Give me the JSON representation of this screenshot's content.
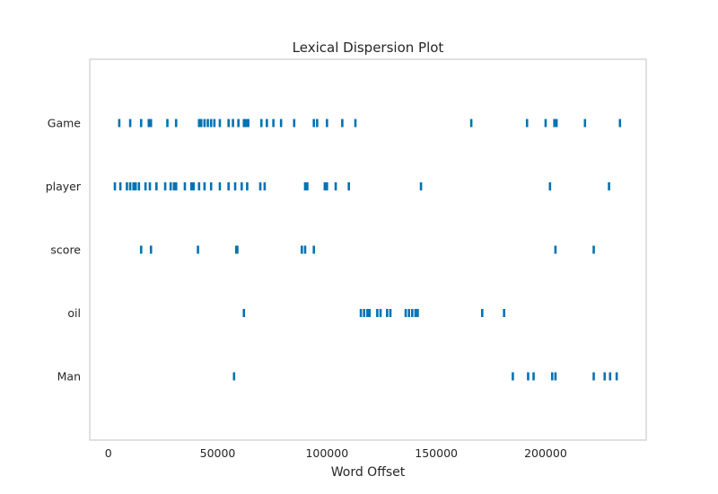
{
  "chart_data": {
    "type": "scatter",
    "title": "Lexical Dispersion Plot",
    "xlabel": "Word Offset",
    "ylabel": "",
    "xlim": [
      -8500,
      246000
    ],
    "xticks": [
      0,
      50000,
      100000,
      150000,
      200000
    ],
    "xtick_labels": [
      "0",
      "50000",
      "100000",
      "150000",
      "200000"
    ],
    "grid": false,
    "marker": "|",
    "color": "#0072b2",
    "categories": [
      "Game",
      "player",
      "score",
      "oil",
      "Man"
    ],
    "series": [
      {
        "name": "Game",
        "x": [
          5000,
          10000,
          15000,
          18500,
          19500,
          27000,
          31000,
          41500,
          42500,
          44000,
          45500,
          47000,
          48500,
          51000,
          55000,
          57000,
          59500,
          62000,
          63000,
          64000,
          70000,
          72500,
          75500,
          79000,
          85000,
          94000,
          95500,
          100000,
          107000,
          113000,
          166000,
          191500,
          200000,
          204000,
          205000,
          218000,
          234000
        ]
      },
      {
        "name": "player",
        "x": [
          3000,
          5500,
          8500,
          10000,
          11500,
          12500,
          14000,
          17000,
          19000,
          22000,
          26000,
          28500,
          30000,
          31000,
          35000,
          38000,
          39000,
          41500,
          44000,
          47000,
          51000,
          55000,
          58000,
          61000,
          63500,
          69500,
          71500,
          90000,
          91000,
          99000,
          100000,
          104000,
          110000,
          143000,
          202000,
          229000
        ]
      },
      {
        "name": "score",
        "x": [
          15000,
          19500,
          41000,
          58500,
          59000,
          88500,
          90000,
          94000,
          204500,
          222000
        ]
      },
      {
        "name": "oil",
        "x": [
          62000,
          115500,
          117000,
          118500,
          119500,
          123000,
          124500,
          127500,
          129000,
          136000,
          137500,
          139000,
          140500,
          141500,
          171000,
          181000
        ]
      },
      {
        "name": "Man",
        "x": [
          57500,
          185000,
          192000,
          194500,
          203000,
          204500,
          222000,
          227000,
          229500,
          232500
        ]
      }
    ]
  }
}
